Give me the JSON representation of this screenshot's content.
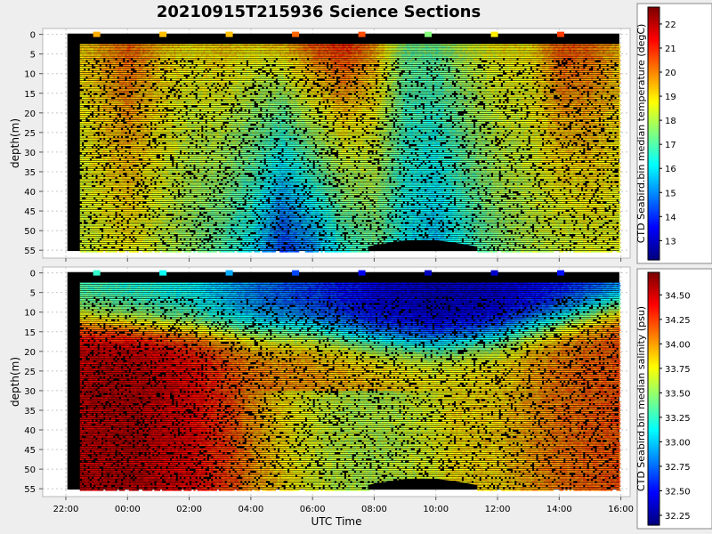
{
  "title": "20210915T215936 Science Sections",
  "xlabel": "UTC Time",
  "x_ticks": [
    "22:00",
    "00:00",
    "02:00",
    "04:00",
    "06:00",
    "08:00",
    "10:00",
    "12:00",
    "14:00",
    "16:00"
  ],
  "chart_data": [
    {
      "type": "heatmap",
      "name": "temperature",
      "ylabel": "depth(m)",
      "y_ticks": [
        "0",
        "5",
        "10",
        "15",
        "20",
        "25",
        "30",
        "35",
        "40",
        "45",
        "50",
        "55"
      ],
      "ylim": [
        57,
        -1.5
      ],
      "xlim_hours": [
        -2.75,
        16.3
      ],
      "data_xrange_hours": [
        -1.95,
        15.95
      ],
      "data_yrange": [
        -0.2,
        55.2
      ],
      "colorbar": {
        "label": "CTD Seabird.bin median temperature (degC)",
        "ticks": [
          "13",
          "14",
          "15",
          "16",
          "17",
          "18",
          "19",
          "20",
          "21",
          "22"
        ],
        "range": [
          12.2,
          22.7
        ]
      },
      "values_description": "mostly 18-20 degC; warm 20-22 columns near 00:00-01:00, 06:00-07:30 and 14:00-15:00; cool 13-16 water at 04:30-06:30 and 09:00-11:00 below 25 m",
      "profiles": [
        {
          "x": -1.9,
          "surf": 19.0,
          "deep": 18.0
        },
        {
          "x": -1.0,
          "surf": 19.6,
          "deep": 18.5
        },
        {
          "x": 0.0,
          "surf": 20.6,
          "deep": 18.8
        },
        {
          "x": 1.0,
          "surf": 19.5,
          "deep": 18.2
        },
        {
          "x": 2.0,
          "surf": 19.0,
          "deep": 17.6
        },
        {
          "x": 3.0,
          "surf": 19.5,
          "deep": 17.0
        },
        {
          "x": 4.0,
          "surf": 19.2,
          "deep": 16.0
        },
        {
          "x": 5.0,
          "surf": 19.8,
          "deep": 14.0
        },
        {
          "x": 6.0,
          "surf": 21.0,
          "deep": 15.0
        },
        {
          "x": 7.0,
          "surf": 21.5,
          "deep": 16.5
        },
        {
          "x": 8.0,
          "surf": 20.0,
          "deep": 17.2
        },
        {
          "x": 9.0,
          "surf": 17.5,
          "deep": 16.0
        },
        {
          "x": 10.0,
          "surf": 17.5,
          "deep": 15.5
        },
        {
          "x": 11.0,
          "surf": 18.5,
          "deep": 16.5
        },
        {
          "x": 12.0,
          "surf": 19.0,
          "deep": 17.5
        },
        {
          "x": 13.0,
          "surf": 19.0,
          "deep": 18.0
        },
        {
          "x": 14.0,
          "surf": 20.8,
          "deep": 18.2
        },
        {
          "x": 15.0,
          "surf": 20.5,
          "deep": 18.5
        },
        {
          "x": 15.95,
          "surf": 19.5,
          "deep": 18.5
        }
      ]
    },
    {
      "type": "heatmap",
      "name": "salinity",
      "ylabel": "depth(m)",
      "y_ticks": [
        "0",
        "5",
        "10",
        "15",
        "20",
        "25",
        "30",
        "35",
        "40",
        "45",
        "50",
        "55"
      ],
      "ylim": [
        57,
        -1.5
      ],
      "xlim_hours": [
        -2.75,
        16.3
      ],
      "data_xrange_hours": [
        -1.95,
        15.95
      ],
      "data_yrange": [
        -0.2,
        55.2
      ],
      "colorbar": {
        "label": "CTD Seabird.bin median salinity (psu)",
        "ticks": [
          "32.25",
          "32.50",
          "32.75",
          "33.00",
          "33.25",
          "33.50",
          "33.75",
          "34.00",
          "34.25",
          "34.50"
        ],
        "range": [
          32.15,
          34.73
        ]
      },
      "values_description": "fresh 32.3-33 psu surface layer thickening toward 09:00-12:00 (to ~18 m); salty 34.2-34.6 psu below 20 m early in the section; 33.6-33.9 psu plume at 04:00-10:00 below 35 m",
      "profiles": [
        {
          "x": -1.9,
          "surf": 33.3,
          "layer_depth": 12,
          "deep": 34.55
        },
        {
          "x": 0.0,
          "surf": 33.2,
          "layer_depth": 13,
          "deep": 34.6
        },
        {
          "x": 2.0,
          "surf": 33.1,
          "layer_depth": 14,
          "deep": 34.45
        },
        {
          "x": 4.0,
          "surf": 32.8,
          "layer_depth": 15,
          "deep": 34.1
        },
        {
          "x": 6.0,
          "surf": 32.6,
          "layer_depth": 15,
          "deep": 34.0
        },
        {
          "x": 8.0,
          "surf": 32.4,
          "layer_depth": 17,
          "deep": 33.9
        },
        {
          "x": 10.0,
          "surf": 32.3,
          "layer_depth": 18,
          "deep": 33.8
        },
        {
          "x": 12.0,
          "surf": 32.35,
          "layer_depth": 16,
          "deep": 33.85
        },
        {
          "x": 14.0,
          "surf": 32.5,
          "layer_depth": 12,
          "deep": 34.1
        },
        {
          "x": 15.95,
          "surf": 32.7,
          "layer_depth": 8,
          "deep": 34.2
        }
      ]
    }
  ]
}
